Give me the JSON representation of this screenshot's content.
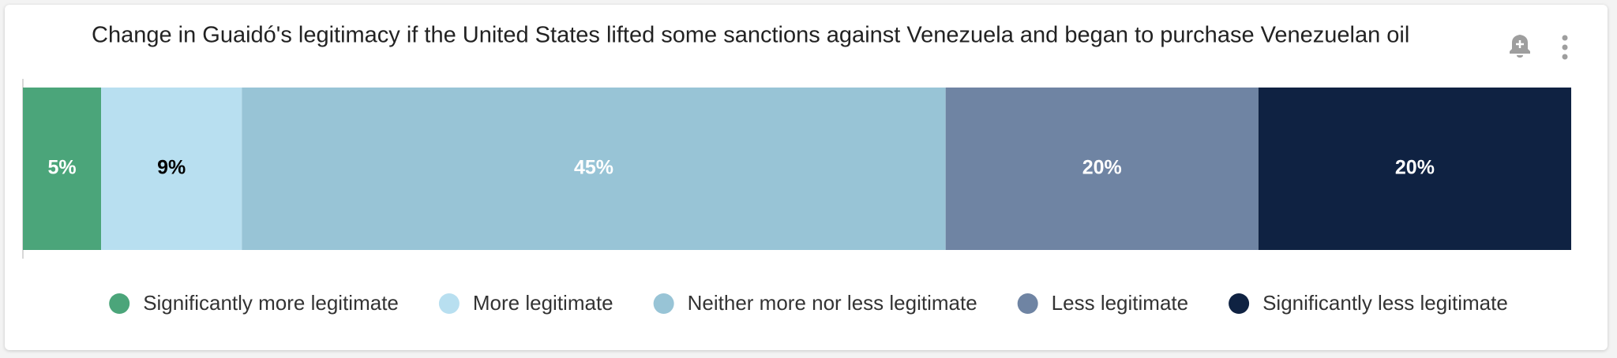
{
  "chart_data": {
    "type": "stacked-bar",
    "title": "Change in Guaidó's legitimacy if the United States lifted some sanctions against Venezuela and began to purchase Venezuelan oil",
    "series": [
      {
        "name": "Significantly more legitimate",
        "color": "#4ba57a",
        "values": [
          5
        ],
        "value_labels": [
          "5%"
        ]
      },
      {
        "name": "More legitimate",
        "color": "#b8dff0",
        "values": [
          9
        ],
        "value_labels": [
          "9%"
        ]
      },
      {
        "name": "Neither more nor less legitimate",
        "color": "#98c4d6",
        "values": [
          45
        ],
        "value_labels": [
          "45%"
        ]
      },
      {
        "name": "Less legitimate",
        "color": "#6f84a3",
        "values": [
          20
        ],
        "value_labels": [
          "20%"
        ]
      },
      {
        "name": "Significantly less legitimate",
        "color": "#0f2242",
        "values": [
          20
        ],
        "value_labels": [
          "20%"
        ]
      }
    ]
  }
}
